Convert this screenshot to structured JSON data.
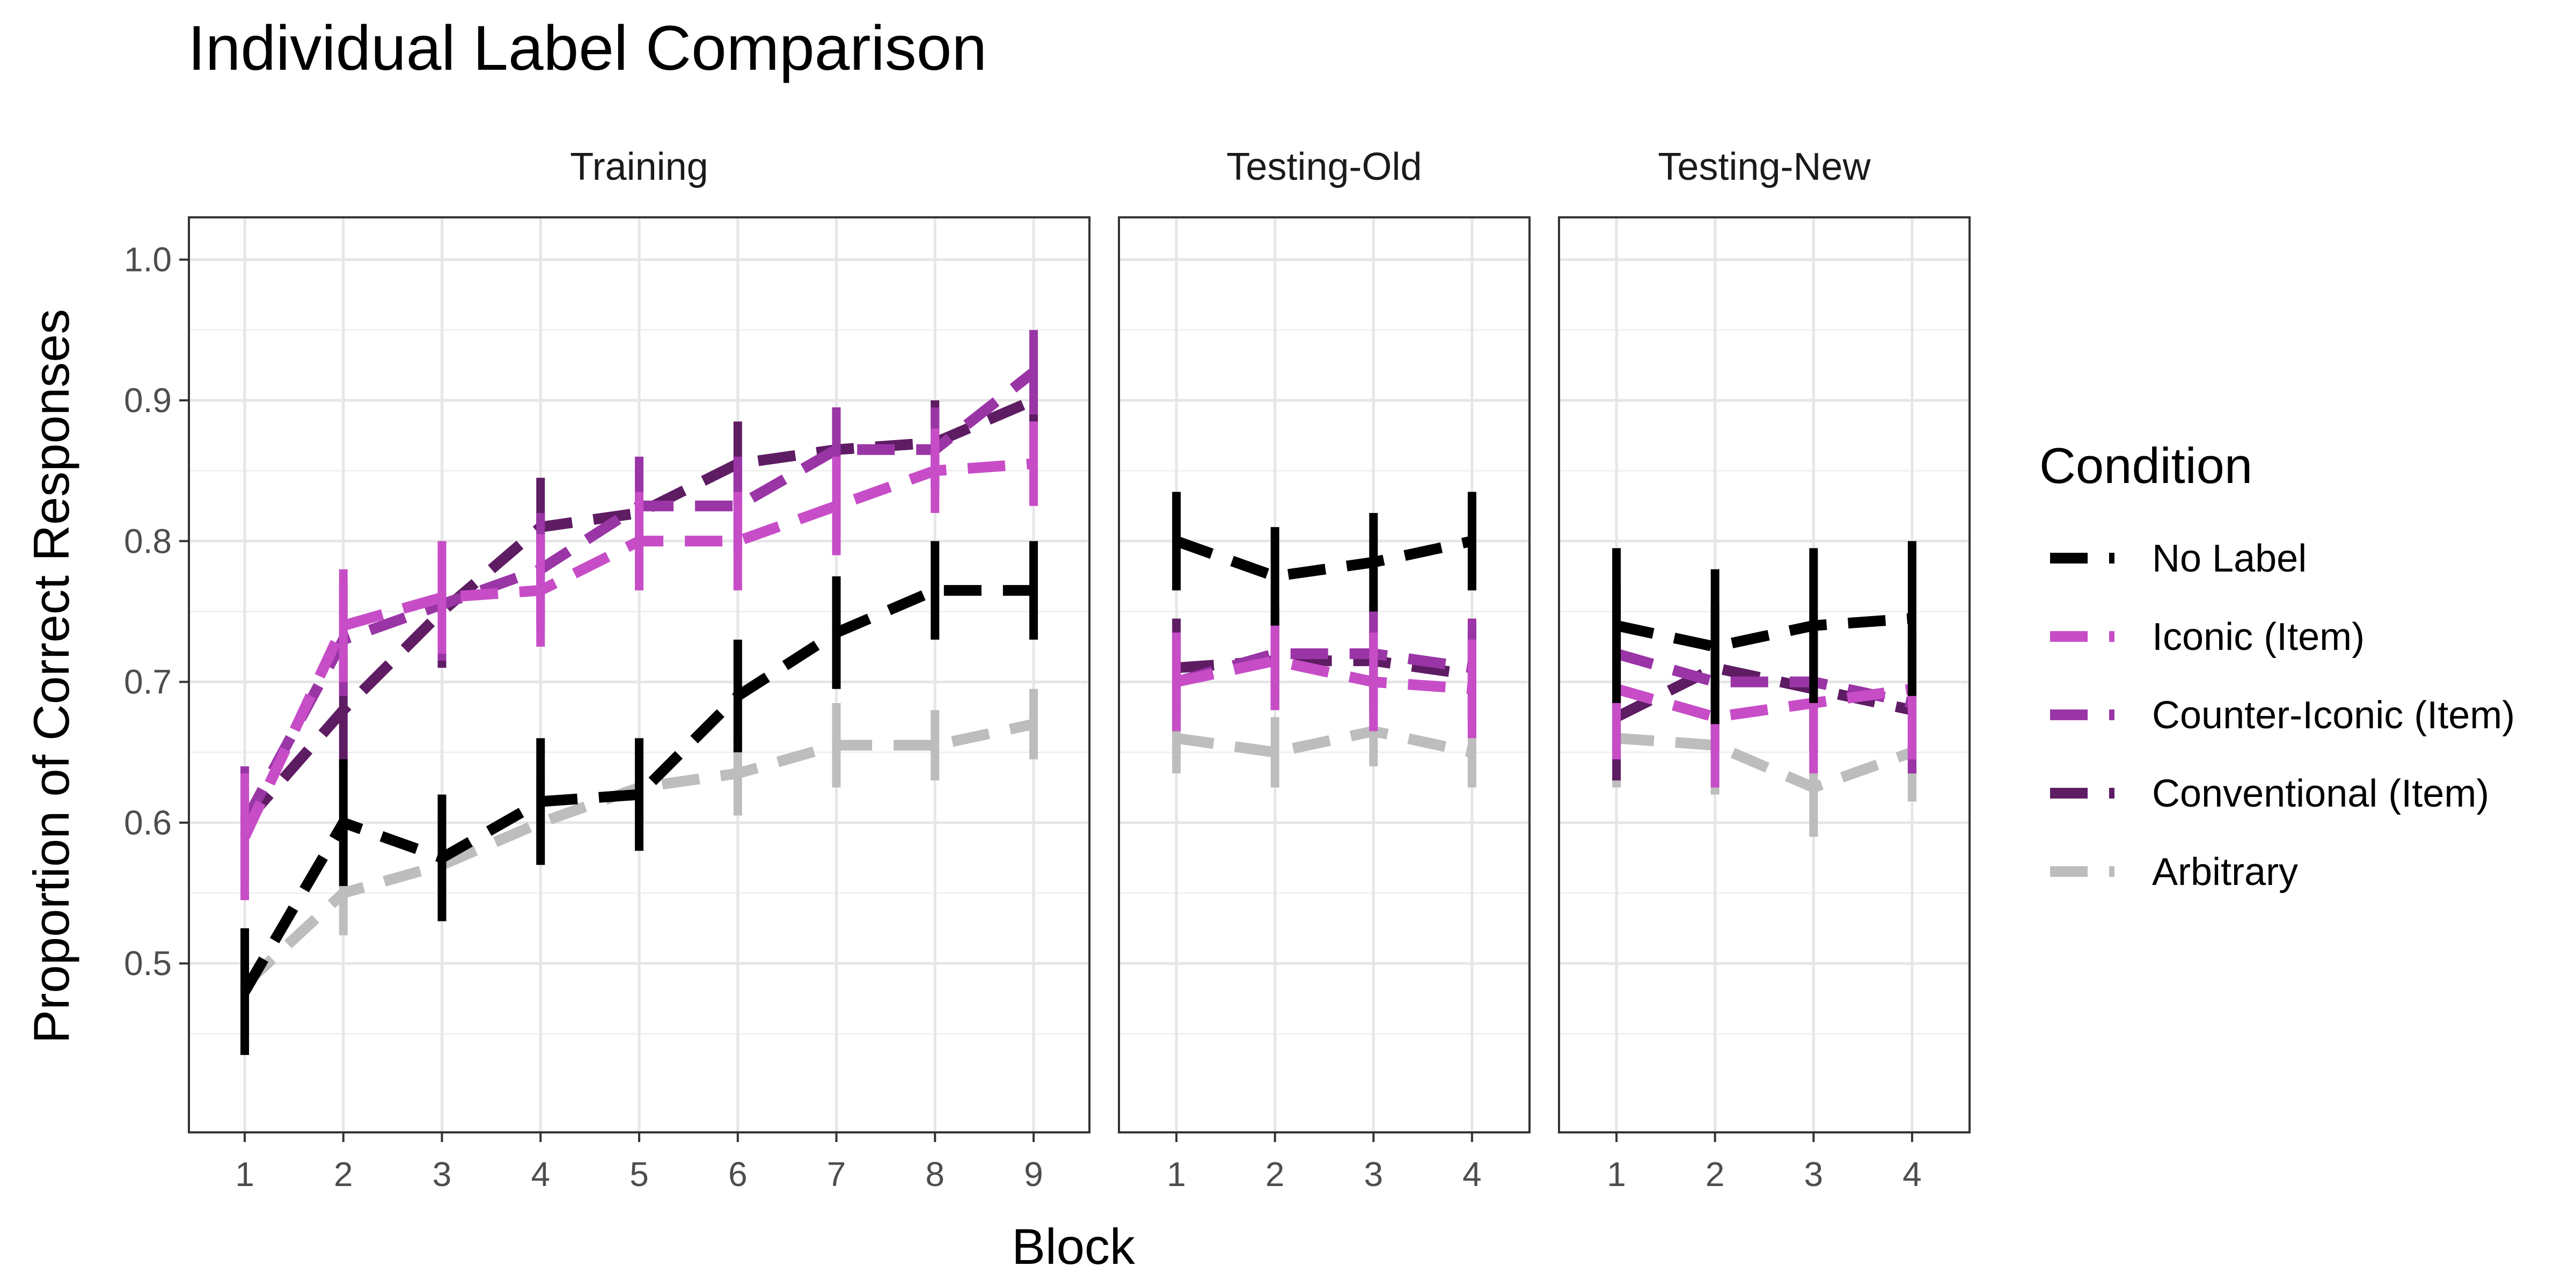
{
  "chart_data": {
    "type": "line",
    "title": "Individual Label Comparison",
    "xlabel": "Block",
    "ylabel": "Proportion of Correct Responses",
    "ylim": [
      0.38,
      1.03
    ],
    "y_ticks": [
      "0.5",
      "0.6",
      "0.7",
      "0.8",
      "0.9",
      "1.0"
    ],
    "grid": true,
    "legend": {
      "title": "Condition",
      "placement": "right"
    },
    "series": [
      {
        "name": "No Label",
        "color": "#000000"
      },
      {
        "name": "Iconic (Item)",
        "color": "#C74DC7"
      },
      {
        "name": "Counter-Iconic (Item)",
        "color": "#9A35A6"
      },
      {
        "name": "Conventional (Item)",
        "color": "#5E1C63"
      },
      {
        "name": "Arbitrary",
        "color": "#BDBDBD"
      }
    ],
    "panels": [
      {
        "name": "Training",
        "x": [
          "1",
          "2",
          "3",
          "4",
          "5",
          "6",
          "7",
          "8",
          "9"
        ],
        "values": {
          "No Label": [
            0.48,
            0.6,
            0.575,
            0.615,
            0.62,
            0.69,
            0.735,
            0.765,
            0.765
          ],
          "Iconic (Item)": [
            0.59,
            0.74,
            0.76,
            0.765,
            0.8,
            0.8,
            0.825,
            0.85,
            0.855
          ],
          "Counter-Iconic (Item)": [
            0.6,
            0.73,
            0.755,
            0.78,
            0.825,
            0.825,
            0.865,
            0.865,
            0.92
          ],
          "Conventional (Item)": [
            0.6,
            0.68,
            0.75,
            0.81,
            0.82,
            0.855,
            0.865,
            0.87,
            0.9
          ],
          "Arbitrary": [
            0.485,
            0.55,
            0.57,
            0.6,
            0.625,
            0.635,
            0.655,
            0.655,
            0.67
          ]
        },
        "errors": {
          "No Label": [
            0.045,
            0.045,
            0.045,
            0.045,
            0.04,
            0.04,
            0.04,
            0.035,
            0.035
          ],
          "Iconic (Item)": [
            0.045,
            0.04,
            0.04,
            0.04,
            0.035,
            0.035,
            0.035,
            0.03,
            0.03
          ],
          "Counter-Iconic (Item)": [
            0.04,
            0.04,
            0.04,
            0.04,
            0.035,
            0.035,
            0.03,
            0.03,
            0.03
          ],
          "Conventional (Item)": [
            0.04,
            0.04,
            0.04,
            0.035,
            0.035,
            0.03,
            0.03,
            0.03,
            0.03
          ],
          "Arbitrary": [
            0.035,
            0.03,
            0.03,
            0.03,
            0.03,
            0.03,
            0.03,
            0.025,
            0.025
          ]
        }
      },
      {
        "name": "Testing-Old",
        "x": [
          "1",
          "2",
          "3",
          "4"
        ],
        "values": {
          "No Label": [
            0.8,
            0.775,
            0.785,
            0.8
          ],
          "Iconic (Item)": [
            0.7,
            0.715,
            0.7,
            0.695
          ],
          "Counter-Iconic (Item)": [
            0.7,
            0.72,
            0.72,
            0.71
          ],
          "Conventional (Item)": [
            0.71,
            0.715,
            0.715,
            0.705
          ],
          "Arbitrary": [
            0.66,
            0.65,
            0.665,
            0.65
          ]
        },
        "errors": {
          "No Label": [
            0.035,
            0.035,
            0.035,
            0.035
          ],
          "Iconic (Item)": [
            0.035,
            0.035,
            0.035,
            0.035
          ],
          "Counter-Iconic (Item)": [
            0.035,
            0.035,
            0.035,
            0.035
          ],
          "Conventional (Item)": [
            0.035,
            0.035,
            0.035,
            0.035
          ],
          "Arbitrary": [
            0.025,
            0.025,
            0.025,
            0.025
          ]
        }
      },
      {
        "name": "Testing-New",
        "x": [
          "1",
          "2",
          "3",
          "4"
        ],
        "values": {
          "No Label": [
            0.74,
            0.725,
            0.74,
            0.745
          ],
          "Iconic (Item)": [
            0.695,
            0.675,
            0.685,
            0.695
          ],
          "Counter-Iconic (Item)": [
            0.72,
            0.7,
            0.7,
            0.685
          ],
          "Conventional (Item)": [
            0.675,
            0.71,
            0.695,
            0.68
          ],
          "Arbitrary": [
            0.66,
            0.655,
            0.625,
            0.65
          ]
        },
        "errors": {
          "No Label": [
            0.055,
            0.055,
            0.055,
            0.055
          ],
          "Iconic (Item)": [
            0.05,
            0.05,
            0.05,
            0.05
          ],
          "Counter-Iconic (Item)": [
            0.05,
            0.05,
            0.05,
            0.05
          ],
          "Conventional (Item)": [
            0.045,
            0.045,
            0.045,
            0.045
          ],
          "Arbitrary": [
            0.035,
            0.035,
            0.035,
            0.035
          ]
        }
      }
    ]
  }
}
